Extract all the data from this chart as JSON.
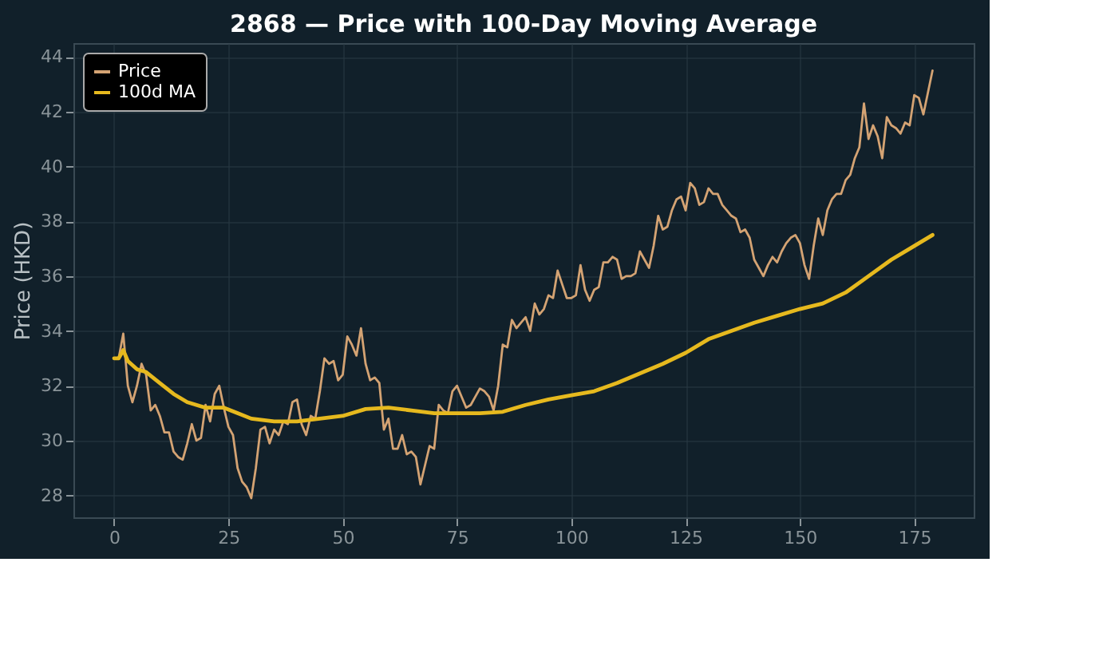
{
  "chart_data": {
    "type": "line",
    "title": "2868 — Price with 100-Day Moving Average",
    "ylabel": "Price (HKD)",
    "xlim": [
      -8.9,
      188
    ],
    "xticks": [
      0,
      25,
      50,
      75,
      100,
      125,
      150,
      175
    ],
    "ylim": [
      27.2,
      44.5
    ],
    "yticks": [
      28,
      30,
      32,
      34,
      36,
      38,
      40,
      42,
      44
    ],
    "grid": true,
    "legend": "top left",
    "series": [
      {
        "name": "Price",
        "color": "#d4a373",
        "x": [
          0,
          1,
          2,
          3,
          4,
          5,
          6,
          7,
          8,
          9,
          10,
          11,
          12,
          13,
          14,
          15,
          16,
          17,
          18,
          19,
          20,
          21,
          22,
          23,
          24,
          25,
          26,
          27,
          28,
          29,
          30,
          31,
          32,
          33,
          34,
          35,
          36,
          37,
          38,
          39,
          40,
          41,
          42,
          43,
          44,
          45,
          46,
          47,
          48,
          49,
          50,
          51,
          52,
          53,
          54,
          55,
          56,
          57,
          58,
          59,
          60,
          61,
          62,
          63,
          64,
          65,
          66,
          67,
          68,
          69,
          70,
          71,
          72,
          73,
          74,
          75,
          76,
          77,
          78,
          79,
          80,
          81,
          82,
          83,
          84,
          85,
          86,
          87,
          88,
          89,
          90,
          91,
          92,
          93,
          94,
          95,
          96,
          97,
          98,
          99,
          100,
          101,
          102,
          103,
          104,
          105,
          106,
          107,
          108,
          109,
          110,
          111,
          112,
          113,
          114,
          115,
          116,
          117,
          118,
          119,
          120,
          121,
          122,
          123,
          124,
          125,
          126,
          127,
          128,
          129,
          130,
          131,
          132,
          133,
          134,
          135,
          136,
          137,
          138,
          139,
          140,
          141,
          142,
          143,
          144,
          145,
          146,
          147,
          148,
          149,
          150,
          151,
          152,
          153,
          154,
          155,
          156,
          157,
          158,
          159,
          160,
          161,
          162,
          163,
          164,
          165,
          166,
          167,
          168,
          169,
          170,
          171,
          172,
          173,
          174,
          175,
          176,
          177,
          178,
          179
        ],
        "values": [
          33.0,
          33.0,
          33.9,
          32.0,
          31.4,
          32.0,
          32.8,
          32.4,
          31.1,
          31.3,
          30.9,
          30.3,
          30.3,
          29.6,
          29.4,
          29.3,
          29.9,
          30.6,
          30.0,
          30.1,
          31.3,
          30.7,
          31.7,
          32.0,
          31.2,
          30.5,
          30.2,
          29.0,
          28.5,
          28.3,
          27.9,
          29.0,
          30.4,
          30.5,
          29.9,
          30.4,
          30.2,
          30.7,
          30.6,
          31.4,
          31.5,
          30.6,
          30.2,
          30.9,
          30.8,
          31.8,
          33.0,
          32.8,
          32.9,
          32.2,
          32.4,
          33.8,
          33.5,
          33.1,
          34.1,
          32.8,
          32.2,
          32.3,
          32.1,
          30.4,
          30.8,
          29.7,
          29.7,
          30.2,
          29.5,
          29.6,
          29.4,
          28.4,
          29.1,
          29.8,
          29.7,
          31.3,
          31.1,
          31.0,
          31.8,
          32.0,
          31.6,
          31.2,
          31.3,
          31.6,
          31.9,
          31.8,
          31.6,
          31.1,
          32.0,
          33.5,
          33.4,
          34.4,
          34.1,
          34.3,
          34.5,
          34.0,
          35.0,
          34.6,
          34.8,
          35.3,
          35.2,
          36.2,
          35.7,
          35.2,
          35.2,
          35.3,
          36.4,
          35.5,
          35.1,
          35.5,
          35.6,
          36.5,
          36.5,
          36.7,
          36.6,
          35.9,
          36.0,
          36.0,
          36.1,
          36.9,
          36.6,
          36.3,
          37.1,
          38.2,
          37.7,
          37.8,
          38.4,
          38.8,
          38.9,
          38.4,
          39.4,
          39.2,
          38.6,
          38.7,
          39.2,
          39.0,
          39.0,
          38.6,
          38.4,
          38.2,
          38.1,
          37.6,
          37.7,
          37.4,
          36.6,
          36.3,
          36.0,
          36.4,
          36.7,
          36.5,
          36.9,
          37.2,
          37.4,
          37.5,
          37.2,
          36.4,
          35.9,
          37.1,
          38.1,
          37.5,
          38.4,
          38.8,
          39.0,
          39.0,
          39.5,
          39.7,
          40.3,
          40.7,
          42.3,
          41.0,
          41.5,
          41.1,
          40.3,
          41.8,
          41.5,
          41.4,
          41.2,
          41.6,
          41.5,
          42.6,
          42.5,
          41.9,
          42.7,
          43.5
        ]
      },
      {
        "name": "100d MA",
        "color": "#e6b91e",
        "x": [
          0,
          1,
          2,
          3,
          5,
          7,
          10,
          13,
          16,
          20,
          24,
          27,
          30,
          35,
          40,
          45,
          50,
          55,
          60,
          65,
          70,
          75,
          80,
          85,
          90,
          95,
          100,
          105,
          110,
          115,
          120,
          125,
          130,
          135,
          140,
          145,
          150,
          155,
          160,
          165,
          170,
          175,
          179
        ],
        "values": [
          33.0,
          33.0,
          33.3,
          32.9,
          32.6,
          32.5,
          32.1,
          31.7,
          31.4,
          31.2,
          31.2,
          31.0,
          30.8,
          30.7,
          30.7,
          30.8,
          30.9,
          31.15,
          31.2,
          31.1,
          31.0,
          31.0,
          31.0,
          31.05,
          31.3,
          31.5,
          31.65,
          31.8,
          32.1,
          32.45,
          32.8,
          33.2,
          33.7,
          34.0,
          34.3,
          34.55,
          34.8,
          35.0,
          35.4,
          36.0,
          36.6,
          37.1,
          37.5
        ]
      }
    ]
  }
}
